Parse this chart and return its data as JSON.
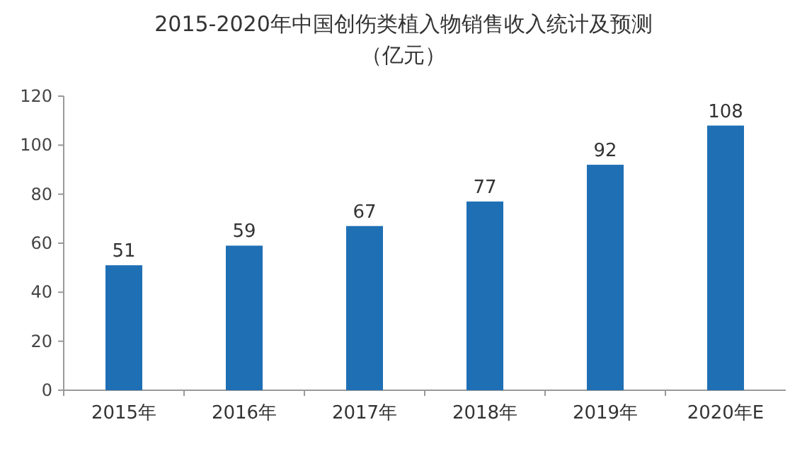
{
  "chart_data": {
    "type": "bar",
    "title": "2015-2020年中国创伤类植入物销售收入统计及预测",
    "subtitle": "（亿元）",
    "categories": [
      "2015年",
      "2016年",
      "2017年",
      "2018年",
      "2019年",
      "2020年E"
    ],
    "values": [
      51,
      59,
      67,
      77,
      92,
      108
    ],
    "color": "#1f6fb5",
    "ylim": [
      0,
      120
    ],
    "yticks": [
      0,
      20,
      40,
      60,
      80,
      100,
      120
    ],
    "data_labels": true,
    "grid": false
  }
}
